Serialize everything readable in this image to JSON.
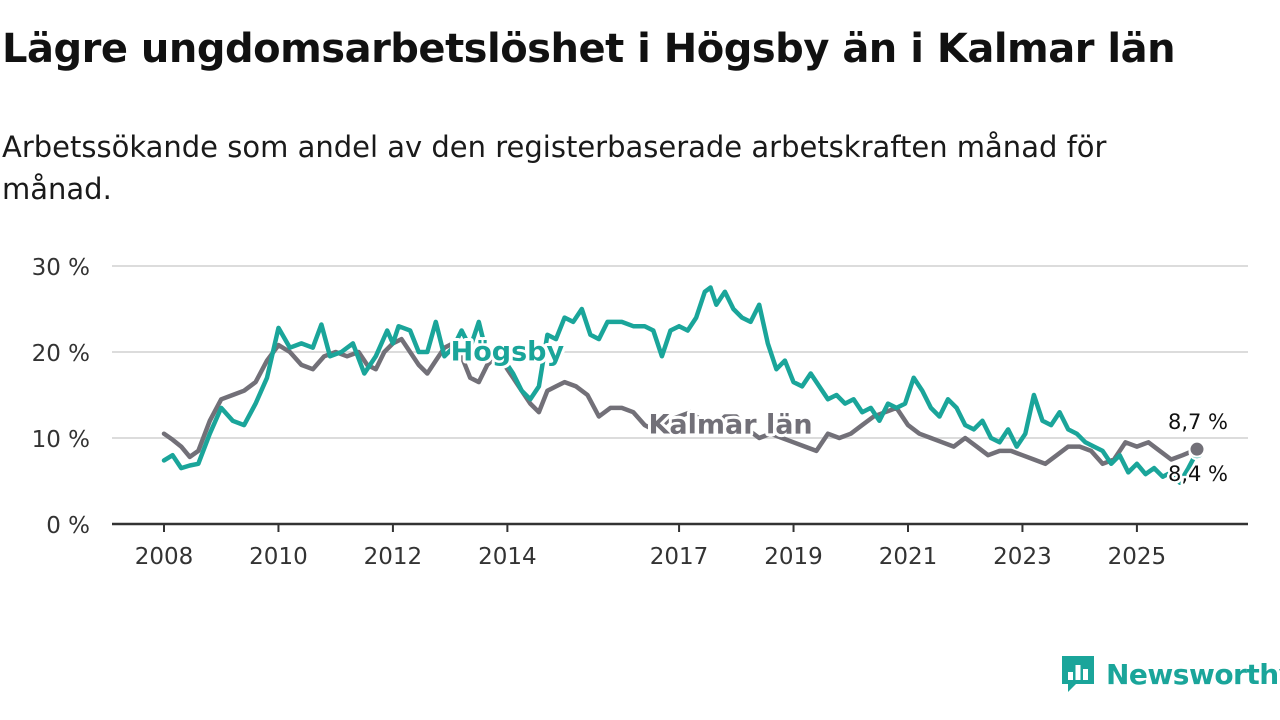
{
  "header": {
    "title": "Lägre ungdomsarbetslöshet i Högsby än i Kalmar län",
    "subtitle": "Arbetssökande som andel av den registerbaserade arbetskraften månad för månad."
  },
  "brand": {
    "name": "Newsworthy",
    "color": "#1aa59a"
  },
  "chart_data": {
    "type": "line",
    "title": "Lägre ungdomsarbetslöshet i Högsby än i Kalmar län",
    "subtitle": "Arbetssökande som andel av den registerbaserade arbetskraften månad för månad.",
    "xlabel": "",
    "ylabel": "",
    "xlim": [
      2008.0,
      2026.7
    ],
    "ylim": [
      0,
      30
    ],
    "grid": true,
    "y_ticks": [
      0,
      10,
      20,
      30
    ],
    "y_tick_labels": [
      "0 %",
      "10 %",
      "20 %",
      "30 %"
    ],
    "x_ticks": [
      2008,
      2010,
      2012,
      2014,
      2017,
      2019,
      2021,
      2023,
      2025
    ],
    "x_tick_labels": [
      "2008",
      "2010",
      "2012",
      "2014",
      "2017",
      "2019",
      "2021",
      "2023",
      "2025"
    ],
    "series": [
      {
        "name": "Högsby",
        "color": "#1aa59a",
        "label_at": [
          2014.0,
          19.0
        ],
        "points": [
          [
            2008.0,
            7.4
          ],
          [
            2008.15,
            8.0
          ],
          [
            2008.3,
            6.5
          ],
          [
            2008.45,
            6.8
          ],
          [
            2008.6,
            7.0
          ],
          [
            2008.8,
            10.5
          ],
          [
            2009.0,
            13.5
          ],
          [
            2009.2,
            12.0
          ],
          [
            2009.4,
            11.5
          ],
          [
            2009.6,
            14.0
          ],
          [
            2009.8,
            17.0
          ],
          [
            2010.0,
            22.8
          ],
          [
            2010.2,
            20.5
          ],
          [
            2010.4,
            21.0
          ],
          [
            2010.6,
            20.5
          ],
          [
            2010.75,
            23.2
          ],
          [
            2010.9,
            19.5
          ],
          [
            2011.1,
            20.0
          ],
          [
            2011.3,
            21.0
          ],
          [
            2011.5,
            17.5
          ],
          [
            2011.7,
            19.5
          ],
          [
            2011.9,
            22.5
          ],
          [
            2012.0,
            21.0
          ],
          [
            2012.1,
            23.0
          ],
          [
            2012.3,
            22.5
          ],
          [
            2012.45,
            20.0
          ],
          [
            2012.6,
            20.0
          ],
          [
            2012.75,
            23.5
          ],
          [
            2012.9,
            19.5
          ],
          [
            2013.05,
            20.5
          ],
          [
            2013.2,
            22.5
          ],
          [
            2013.35,
            20.5
          ],
          [
            2013.5,
            23.5
          ],
          [
            2013.65,
            19.5
          ],
          [
            2013.8,
            20.5
          ],
          [
            2013.95,
            19.0
          ],
          [
            2014.1,
            17.5
          ],
          [
            2014.25,
            15.5
          ],
          [
            2014.4,
            14.5
          ],
          [
            2014.55,
            16.0
          ],
          [
            2014.7,
            22.0
          ],
          [
            2014.85,
            21.5
          ],
          [
            2015.0,
            24.0
          ],
          [
            2015.15,
            23.5
          ],
          [
            2015.3,
            25.0
          ],
          [
            2015.45,
            22.0
          ],
          [
            2015.6,
            21.5
          ],
          [
            2015.75,
            23.5
          ],
          [
            2016.0,
            23.5
          ],
          [
            2016.2,
            23.0
          ],
          [
            2016.4,
            23.0
          ],
          [
            2016.55,
            22.5
          ],
          [
            2016.7,
            19.5
          ],
          [
            2016.85,
            22.5
          ],
          [
            2017.0,
            23.0
          ],
          [
            2017.15,
            22.5
          ],
          [
            2017.3,
            24.0
          ],
          [
            2017.45,
            27.0
          ],
          [
            2017.55,
            27.5
          ],
          [
            2017.65,
            25.5
          ],
          [
            2017.8,
            27.0
          ],
          [
            2017.95,
            25.0
          ],
          [
            2018.1,
            24.0
          ],
          [
            2018.25,
            23.5
          ],
          [
            2018.4,
            25.5
          ],
          [
            2018.55,
            21.0
          ],
          [
            2018.7,
            18.0
          ],
          [
            2018.85,
            19.0
          ],
          [
            2019.0,
            16.5
          ],
          [
            2019.15,
            16.0
          ],
          [
            2019.3,
            17.5
          ],
          [
            2019.45,
            16.0
          ],
          [
            2019.6,
            14.5
          ],
          [
            2019.75,
            15.0
          ],
          [
            2019.9,
            14.0
          ],
          [
            2020.05,
            14.5
          ],
          [
            2020.2,
            13.0
          ],
          [
            2020.35,
            13.5
          ],
          [
            2020.5,
            12.0
          ],
          [
            2020.65,
            14.0
          ],
          [
            2020.8,
            13.5
          ],
          [
            2020.95,
            14.0
          ],
          [
            2021.1,
            17.0
          ],
          [
            2021.25,
            15.5
          ],
          [
            2021.4,
            13.5
          ],
          [
            2021.55,
            12.5
          ],
          [
            2021.7,
            14.5
          ],
          [
            2021.85,
            13.5
          ],
          [
            2022.0,
            11.5
          ],
          [
            2022.15,
            11.0
          ],
          [
            2022.3,
            12.0
          ],
          [
            2022.45,
            10.0
          ],
          [
            2022.6,
            9.5
          ],
          [
            2022.75,
            11.0
          ],
          [
            2022.9,
            9.0
          ],
          [
            2023.05,
            10.5
          ],
          [
            2023.2,
            15.0
          ],
          [
            2023.35,
            12.0
          ],
          [
            2023.5,
            11.5
          ],
          [
            2023.65,
            13.0
          ],
          [
            2023.8,
            11.0
          ],
          [
            2023.95,
            10.5
          ],
          [
            2024.1,
            9.5
          ],
          [
            2024.25,
            9.0
          ],
          [
            2024.4,
            8.5
          ],
          [
            2024.55,
            7.0
          ],
          [
            2024.7,
            8.0
          ],
          [
            2024.85,
            6.0
          ],
          [
            2025.0,
            7.0
          ],
          [
            2025.15,
            5.8
          ],
          [
            2025.3,
            6.5
          ],
          [
            2025.45,
            5.5
          ],
          [
            2025.6,
            6.0
          ],
          [
            2025.75,
            4.8
          ],
          [
            2025.9,
            6.5
          ],
          [
            2026.05,
            8.4
          ]
        ],
        "end_label": "8,4 %"
      },
      {
        "name": "Kalmar län",
        "color": "#727078",
        "label_at": [
          2017.9,
          10.5
        ],
        "points": [
          [
            2008.0,
            10.5
          ],
          [
            2008.15,
            9.8
          ],
          [
            2008.3,
            9.0
          ],
          [
            2008.45,
            7.8
          ],
          [
            2008.6,
            8.5
          ],
          [
            2008.8,
            12.0
          ],
          [
            2009.0,
            14.5
          ],
          [
            2009.2,
            15.0
          ],
          [
            2009.4,
            15.5
          ],
          [
            2009.6,
            16.5
          ],
          [
            2009.8,
            19.0
          ],
          [
            2010.0,
            20.8
          ],
          [
            2010.2,
            20.0
          ],
          [
            2010.4,
            18.5
          ],
          [
            2010.6,
            18.0
          ],
          [
            2010.8,
            19.5
          ],
          [
            2011.0,
            20.0
          ],
          [
            2011.2,
            19.5
          ],
          [
            2011.4,
            20.0
          ],
          [
            2011.55,
            18.5
          ],
          [
            2011.7,
            18.0
          ],
          [
            2011.85,
            20.0
          ],
          [
            2012.0,
            21.0
          ],
          [
            2012.15,
            21.5
          ],
          [
            2012.3,
            20.0
          ],
          [
            2012.45,
            18.5
          ],
          [
            2012.6,
            17.5
          ],
          [
            2012.75,
            19.0
          ],
          [
            2012.9,
            20.5
          ],
          [
            2013.05,
            21.0
          ],
          [
            2013.2,
            19.5
          ],
          [
            2013.35,
            17.0
          ],
          [
            2013.5,
            16.5
          ],
          [
            2013.65,
            18.5
          ],
          [
            2013.8,
            19.5
          ],
          [
            2013.95,
            18.5
          ],
          [
            2014.1,
            17.0
          ],
          [
            2014.25,
            15.5
          ],
          [
            2014.4,
            14.0
          ],
          [
            2014.55,
            13.0
          ],
          [
            2014.7,
            15.5
          ],
          [
            2014.85,
            16.0
          ],
          [
            2015.0,
            16.5
          ],
          [
            2015.2,
            16.0
          ],
          [
            2015.4,
            15.0
          ],
          [
            2015.6,
            12.5
          ],
          [
            2015.8,
            13.5
          ],
          [
            2016.0,
            13.5
          ],
          [
            2016.2,
            13.0
          ],
          [
            2016.4,
            11.5
          ],
          [
            2016.6,
            10.8
          ],
          [
            2016.8,
            12.0
          ],
          [
            2017.0,
            12.5
          ],
          [
            2017.2,
            13.0
          ],
          [
            2017.4,
            12.0
          ],
          [
            2017.6,
            11.0
          ],
          [
            2017.8,
            12.5
          ],
          [
            2018.0,
            12.5
          ],
          [
            2018.2,
            11.0
          ],
          [
            2018.4,
            10.0
          ],
          [
            2018.6,
            10.5
          ],
          [
            2018.8,
            10.0
          ],
          [
            2019.0,
            9.5
          ],
          [
            2019.2,
            9.0
          ],
          [
            2019.4,
            8.5
          ],
          [
            2019.6,
            10.5
          ],
          [
            2019.8,
            10.0
          ],
          [
            2020.0,
            10.5
          ],
          [
            2020.2,
            11.5
          ],
          [
            2020.4,
            12.5
          ],
          [
            2020.6,
            13.0
          ],
          [
            2020.8,
            13.5
          ],
          [
            2021.0,
            11.5
          ],
          [
            2021.2,
            10.5
          ],
          [
            2021.4,
            10.0
          ],
          [
            2021.6,
            9.5
          ],
          [
            2021.8,
            9.0
          ],
          [
            2022.0,
            10.0
          ],
          [
            2022.2,
            9.0
          ],
          [
            2022.4,
            8.0
          ],
          [
            2022.6,
            8.5
          ],
          [
            2022.8,
            8.5
          ],
          [
            2023.0,
            8.0
          ],
          [
            2023.2,
            7.5
          ],
          [
            2023.4,
            7.0
          ],
          [
            2023.6,
            8.0
          ],
          [
            2023.8,
            9.0
          ],
          [
            2024.0,
            9.0
          ],
          [
            2024.2,
            8.5
          ],
          [
            2024.4,
            7.0
          ],
          [
            2024.6,
            7.5
          ],
          [
            2024.8,
            9.5
          ],
          [
            2025.0,
            9.0
          ],
          [
            2025.2,
            9.5
          ],
          [
            2025.4,
            8.5
          ],
          [
            2025.6,
            7.5
          ],
          [
            2025.8,
            8.0
          ],
          [
            2026.05,
            8.7
          ]
        ],
        "end_label": "8,7 %"
      }
    ]
  }
}
